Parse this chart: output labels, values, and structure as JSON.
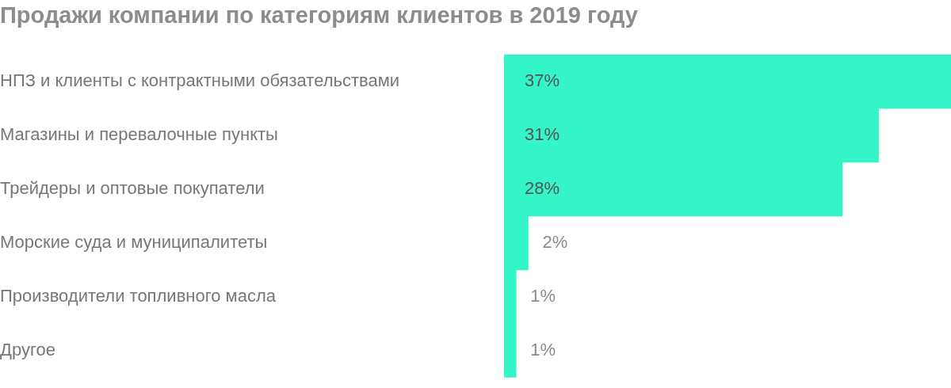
{
  "chart_data": {
    "type": "bar",
    "orientation": "horizontal",
    "title": "Продажи компании по категориям клиентов в 2019 году",
    "categories": [
      "НПЗ и клиенты с контрактными обязательствами",
      "Магазины и перевалочные пункты",
      "Трейдеры и оптовые покупатели",
      "Морские суда и муниципалитеты",
      "Производители топливного масла",
      "Другое"
    ],
    "values": [
      37,
      31,
      28,
      2,
      1,
      1
    ],
    "value_labels": [
      "37%",
      "31%",
      "28%",
      "2%",
      "1%",
      "1%"
    ],
    "color": "#33f5c8",
    "grid": false,
    "legend": false
  }
}
